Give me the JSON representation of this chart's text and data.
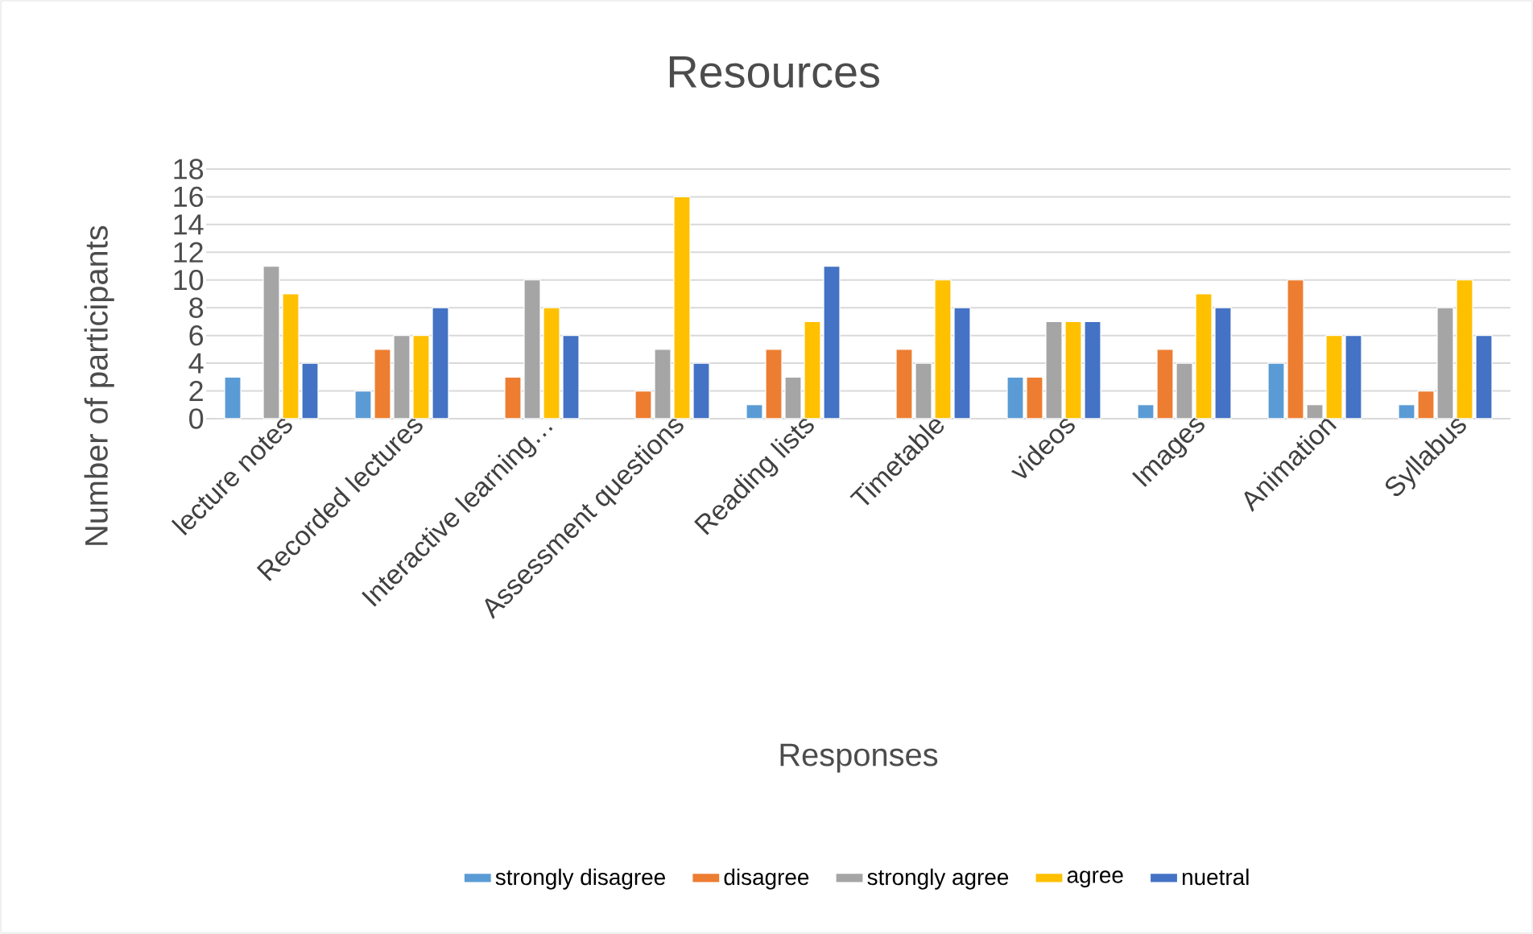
{
  "chart_data": {
    "type": "bar",
    "title": "Resources",
    "xlabel": "Responses",
    "ylabel": "Number of participants",
    "categories": [
      "lecture notes",
      "Recorded lectures",
      "Interactive learning…",
      "Assessment questions",
      "Reading lists",
      "Timetable",
      "videos",
      "Images",
      "Animation",
      "Syllabus"
    ],
    "series": [
      {
        "name": "strongly disagree",
        "color": "#5b9bd5",
        "values": [
          3,
          2,
          null,
          null,
          1,
          null,
          3,
          1,
          4,
          1
        ]
      },
      {
        "name": "disagree",
        "color": "#ed7d31",
        "values": [
          null,
          5,
          3,
          2,
          5,
          5,
          3,
          5,
          10,
          2
        ]
      },
      {
        "name": "strongly agree",
        "color": "#a5a5a5",
        "values": [
          11,
          6,
          10,
          5,
          3,
          4,
          7,
          4,
          1,
          8
        ]
      },
      {
        "name": "agree",
        "color": "#ffc000",
        "values": [
          9,
          6,
          8,
          16,
          7,
          10,
          7,
          9,
          6,
          10
        ]
      },
      {
        "name": "nuetral",
        "color": "#4472c4",
        "values": [
          4,
          8,
          6,
          4,
          11,
          8,
          7,
          8,
          6,
          6
        ]
      }
    ],
    "ylim": [
      0,
      18
    ],
    "yticks": [
      0,
      2,
      4,
      6,
      8,
      10,
      12,
      14,
      16,
      18
    ],
    "grid": "y",
    "legend": "bottom"
  }
}
